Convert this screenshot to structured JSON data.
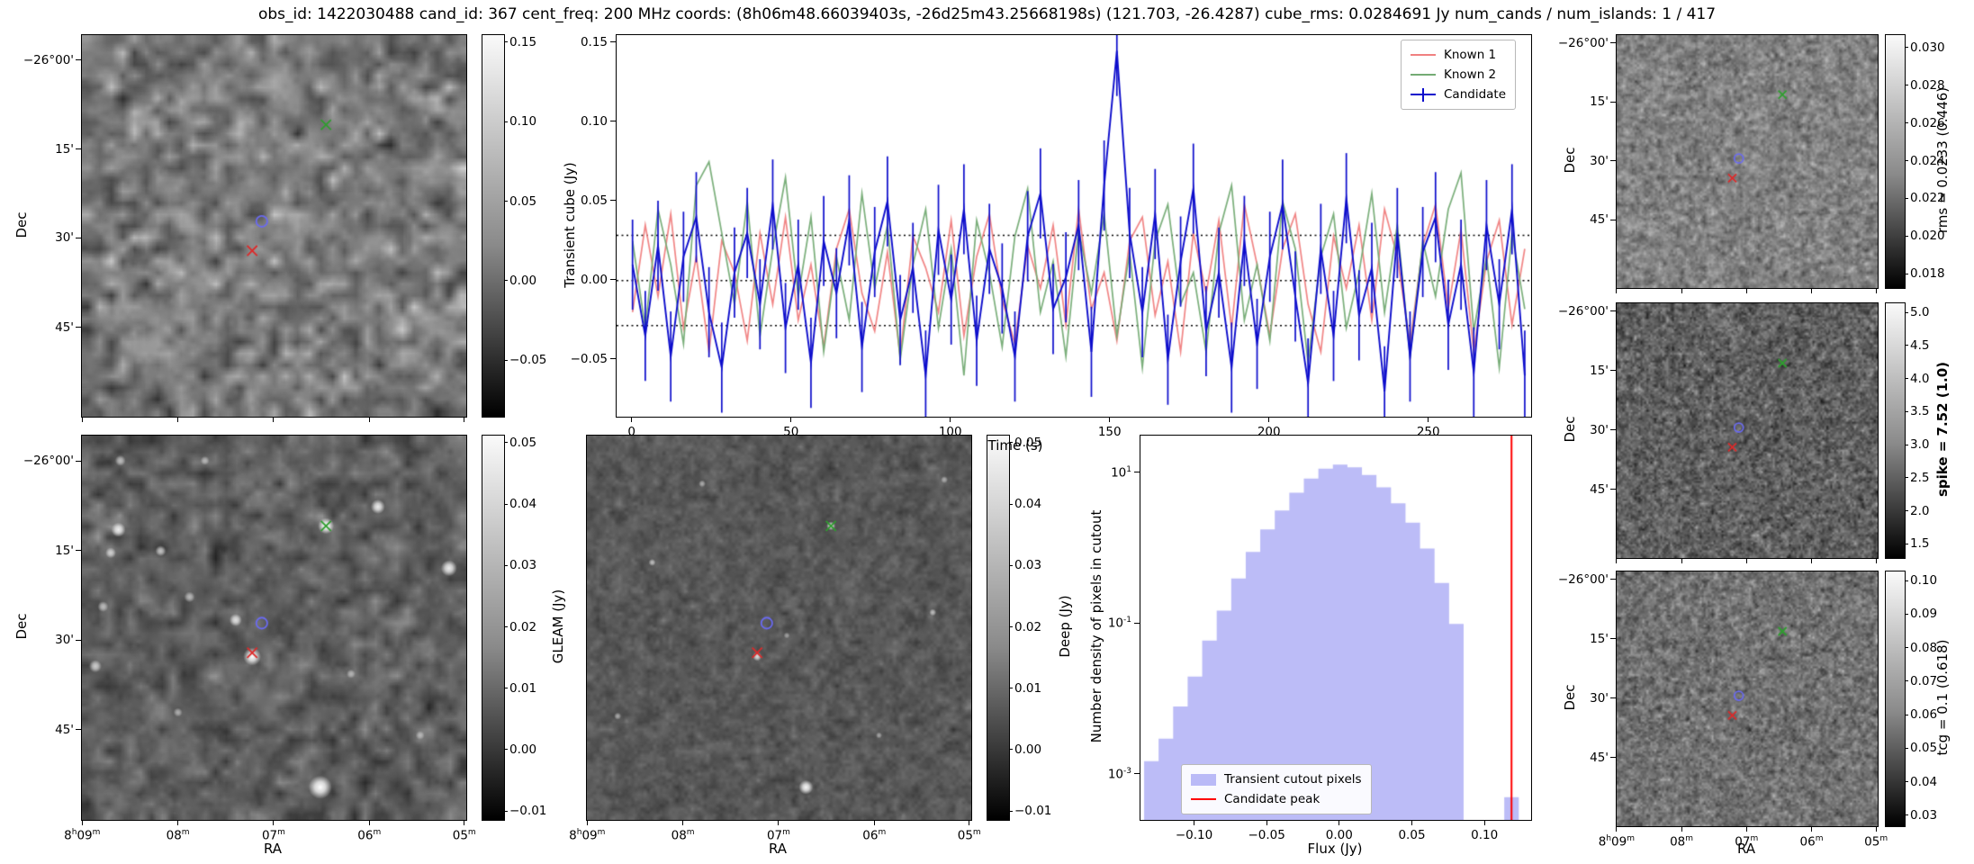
{
  "title": "obs_id: 1422030488 cand_id: 367 cent_freq: 200 MHz coords: (8h06m48.66039403s, -26d25m43.25668198s) (121.703, -26.4287) cube_rms: 0.0284691 Jy num_cands / num_islands: 1 / 417",
  "axis_labels": {
    "dec": "Dec",
    "ra": "RA",
    "time": "Time (s)",
    "transient_cube": "Transient cube (Jy)",
    "gleam": "GLEAM (Jy)",
    "deep": "Deep (Jy)",
    "flux": "Flux (Jy)",
    "hist_y": "Number density of pixels in cutout"
  },
  "dec_ticks": [
    "−26°00'",
    "15'",
    "30'",
    "45'"
  ],
  "ra_ticks": [
    "8h09m",
    "08m",
    "07m",
    "06m",
    "05m"
  ],
  "colorbars": {
    "transient": {
      "vmin": -0.085,
      "vmax": 0.155,
      "ticks": [
        0.15,
        0.1,
        0.05,
        0.0,
        -0.05
      ],
      "labels": [
        "0.15",
        "0.10",
        "0.05",
        "0.00",
        "−0.05"
      ]
    },
    "gleam": {
      "vmin": -0.0113,
      "vmax": 0.0513,
      "ticks": [
        0.05,
        0.04,
        0.03,
        0.02,
        0.01,
        0.0,
        -0.01
      ],
      "labels": [
        "0.05",
        "0.04",
        "0.03",
        "0.02",
        "0.01",
        "0.00",
        "−0.01"
      ]
    },
    "deep": {
      "vmin": -0.0113,
      "vmax": 0.0513,
      "ticks": [
        0.05,
        0.04,
        0.03,
        0.02,
        0.01,
        0.0,
        -0.01
      ],
      "labels": [
        "0.05",
        "0.04",
        "0.03",
        "0.02",
        "0.01",
        "0.00",
        "−0.01"
      ]
    },
    "rms": {
      "vmin": 0.0173,
      "vmax": 0.0307,
      "ticks": [
        0.03,
        0.028,
        0.026,
        0.024,
        0.022,
        0.02,
        0.018
      ],
      "labels": [
        "0.030",
        "0.028",
        "0.026",
        "0.024",
        "0.022",
        "0.020",
        "0.018"
      ],
      "label": "rms = 0.0233 (0.446)"
    },
    "spike": {
      "vmin": 1.3,
      "vmax": 5.15,
      "ticks": [
        5.0,
        4.5,
        4.0,
        3.5,
        3.0,
        2.5,
        2.0,
        1.5
      ],
      "labels": [
        "5.0",
        "4.5",
        "4.0",
        "3.5",
        "3.0",
        "2.5",
        "2.0",
        "1.5"
      ],
      "label": "spike = 7.52 (1.0)"
    },
    "tcg": {
      "vmin": 0.027,
      "vmax": 0.103,
      "ticks": [
        0.1,
        0.09,
        0.08,
        0.07,
        0.06,
        0.05,
        0.04,
        0.03
      ],
      "labels": [
        "0.10",
        "0.09",
        "0.08",
        "0.07",
        "0.06",
        "0.05",
        "0.04",
        "0.03"
      ],
      "label": "tcg = 0.1 (0.618)"
    }
  },
  "markers": [
    {
      "name": "known-1-position",
      "shape": "x",
      "color": "#dd2a2a",
      "fx": 0.443,
      "fy": 0.565
    },
    {
      "name": "known-2-position",
      "shape": "x",
      "color": "#2f9e2f",
      "fx": 0.635,
      "fy": 0.235
    },
    {
      "name": "candidate-position",
      "shape": "circle",
      "color": "#6a6af0",
      "fx": 0.468,
      "fy": 0.488
    }
  ],
  "chart_data": [
    {
      "type": "line",
      "name": "transient-lightcurve",
      "xlabel": "Time (s)",
      "ylabel": "Transient cube (Jy)",
      "xlim": [
        -5,
        282
      ],
      "ylim": [
        -0.086,
        0.155
      ],
      "x_ticks": [
        0,
        50,
        100,
        150,
        200,
        250
      ],
      "y_ticks": [
        0.15,
        0.1,
        0.05,
        0.0,
        -0.05
      ],
      "y_tick_labels": [
        "0.15",
        "0.10",
        "0.05",
        "0.00",
        "−0.05"
      ],
      "hlines": [
        0.0284691,
        0.0,
        -0.0284691
      ],
      "hline_style": "dotted",
      "legend_position": "upper right",
      "x_start": 0,
      "x_step": 4,
      "series": [
        {
          "name": "Known 1",
          "color": "#f08080",
          "values": [
            -0.02,
            0.035,
            -0.01,
            0.042,
            -0.03,
            0.015,
            -0.045,
            0.025,
            0.005,
            -0.038,
            0.03,
            -0.015,
            0.04,
            -0.025,
            0.01,
            -0.042,
            0.02,
            0.045,
            -0.008,
            -0.032,
            0.018,
            -0.048,
            0.028,
            0.008,
            -0.02,
            0.038,
            -0.035,
            0.015,
            0.042,
            -0.012,
            -0.04,
            0.022,
            -0.005,
            0.035,
            -0.028,
            0.045,
            -0.018,
            0.005,
            -0.038,
            0.025,
            0.04,
            -0.022,
            0.012,
            -0.045,
            0.03,
            -0.008,
            0.038,
            -0.03,
            0.048,
            0.01,
            -0.035,
            0.02,
            0.042,
            -0.015,
            -0.045,
            0.028,
            -0.005,
            0.035,
            -0.025,
            0.045,
            0.015,
            -0.04,
            0.022,
            0.048,
            -0.018,
            0.032,
            -0.045,
            0.012,
            0.038,
            -0.028,
            0.02
          ]
        },
        {
          "name": "Known 2",
          "color": "#74ab74",
          "values": [
            0.025,
            -0.03,
            0.045,
            0.01,
            -0.04,
            0.06,
            0.075,
            0.03,
            -0.015,
            0.05,
            -0.035,
            0.02,
            0.065,
            -0.01,
            0.04,
            -0.045,
            0.015,
            -0.025,
            0.055,
            -0.005,
            0.035,
            -0.05,
            0.01,
            0.045,
            -0.03,
            0.02,
            -0.06,
            0.038,
            0.005,
            -0.042,
            0.028,
            0.058,
            -0.02,
            0.012,
            -0.048,
            0.032,
            -0.008,
            0.042,
            -0.035,
            0.018,
            -0.055,
            0.025,
            0.048,
            -0.015,
            0.005,
            -0.045,
            0.03,
            0.06,
            -0.025,
            0.01,
            -0.038,
            0.05,
            0.02,
            -0.052,
            0.015,
            0.042,
            -0.03,
            0.005,
            0.055,
            -0.02,
            0.035,
            -0.048,
            0.025,
            -0.01,
            0.045,
            0.068,
            -0.032,
            0.015,
            -0.055,
            0.03,
            -0.018
          ]
        },
        {
          "name": "Candidate",
          "color": "#0d0dcc",
          "yerr": 0.0284691,
          "values": [
            0.01,
            -0.035,
            0.022,
            -0.048,
            0.015,
            0.04,
            -0.02,
            -0.055,
            0.005,
            0.03,
            -0.015,
            0.048,
            -0.03,
            0.01,
            -0.052,
            0.025,
            -0.008,
            0.038,
            -0.042,
            0.018,
            0.05,
            -0.025,
            0.008,
            -0.06,
            0.032,
            -0.012,
            0.045,
            -0.038,
            0.02,
            -0.005,
            -0.048,
            0.028,
            0.055,
            -0.018,
            0.002,
            0.035,
            -0.045,
            0.06,
            0.145,
            0.03,
            -0.02,
            0.042,
            -0.05,
            0.012,
            0.058,
            -0.032,
            0.005,
            -0.055,
            0.025,
            -0.04,
            0.015,
            0.048,
            -0.01,
            -0.065,
            0.02,
            -0.035,
            0.052,
            -0.022,
            0.008,
            -0.07,
            0.03,
            -0.048,
            0.018,
            0.04,
            -0.028,
            0.01,
            -0.058,
            0.035,
            -0.015,
            0.045,
            -0.06
          ]
        }
      ]
    },
    {
      "type": "bar",
      "name": "flux-histogram",
      "xlabel": "Flux (Jy)",
      "ylabel": "Number density of pixels in cutout",
      "yscale": "log",
      "xlim": [
        -0.1375,
        0.1315
      ],
      "ylim": [
        0.00025,
        31.6
      ],
      "x_ticks": [
        -0.1,
        -0.05,
        0.0,
        0.05,
        0.1
      ],
      "x_tick_labels": [
        "−0.10",
        "−0.05",
        "0.00",
        "0.05",
        "0.10"
      ],
      "y_tick_exponents": [
        1,
        -1,
        -3
      ],
      "bin_width": 0.01,
      "bin_left": [
        -0.135,
        -0.125,
        -0.115,
        -0.105,
        -0.095,
        -0.085,
        -0.075,
        -0.065,
        -0.055,
        -0.045,
        -0.035,
        -0.025,
        -0.015,
        -0.005,
        0.005,
        0.015,
        0.025,
        0.035,
        0.045,
        0.055,
        0.065,
        0.075
      ],
      "density": [
        0.0015,
        0.003,
        0.008,
        0.02,
        0.06,
        0.15,
        0.4,
        0.9,
        1.8,
        3.2,
        5.5,
        8.5,
        11.5,
        13,
        12,
        9.5,
        6.5,
        4,
        2.2,
        1.0,
        0.35,
        0.1
      ],
      "outlier_bin": {
        "left": 0.113,
        "width": 0.01,
        "density": 0.0005
      },
      "candidate_peak": 0.118,
      "fill_color": "#8f8ff2",
      "line_color": "#ff0000",
      "legend": [
        "Transient cutout pixels",
        "Candidate peak"
      ],
      "legend_position": "lower left"
    },
    {
      "type": "heatmap",
      "name": "transient-cutout",
      "colorbar": "transient",
      "unit": "Jy"
    },
    {
      "type": "heatmap",
      "name": "gleam-cutout",
      "colorbar": "gleam",
      "unit": "Jy",
      "sources": [
        [
          0.635,
          0.235,
          9,
          1.0
        ],
        [
          0.443,
          0.575,
          10,
          1.0
        ],
        [
          0.095,
          0.245,
          8,
          0.9
        ],
        [
          0.075,
          0.305,
          6,
          0.7
        ],
        [
          0.28,
          0.42,
          6,
          0.6
        ],
        [
          0.4,
          0.48,
          7,
          0.8
        ],
        [
          0.77,
          0.185,
          8,
          0.9
        ],
        [
          0.955,
          0.345,
          9,
          0.9
        ],
        [
          0.62,
          0.915,
          13,
          1.0
        ],
        [
          0.035,
          0.6,
          7,
          0.7
        ],
        [
          0.25,
          0.72,
          5,
          0.5
        ],
        [
          0.88,
          0.78,
          5,
          0.5
        ],
        [
          0.7,
          0.62,
          5,
          0.5
        ],
        [
          0.1,
          0.065,
          6,
          0.6
        ],
        [
          0.32,
          0.065,
          5,
          0.5
        ],
        [
          0.055,
          0.445,
          6,
          0.6
        ],
        [
          0.205,
          0.3,
          6,
          0.7
        ]
      ]
    },
    {
      "type": "heatmap",
      "name": "deep-cutout",
      "colorbar": "deep",
      "unit": "Jy",
      "sources": [
        [
          0.635,
          0.235,
          5,
          0.9
        ],
        [
          0.443,
          0.575,
          5,
          0.8
        ],
        [
          0.17,
          0.33,
          4,
          0.6
        ],
        [
          0.9,
          0.46,
          4,
          0.6
        ],
        [
          0.57,
          0.915,
          8,
          0.95
        ],
        [
          0.08,
          0.73,
          4,
          0.5
        ],
        [
          0.3,
          0.125,
          4,
          0.5
        ],
        [
          0.93,
          0.115,
          4,
          0.5
        ],
        [
          0.76,
          0.78,
          3.5,
          0.45
        ],
        [
          0.52,
          0.52,
          3.5,
          0.4
        ]
      ]
    },
    {
      "type": "heatmap",
      "name": "rms-cutout",
      "colorbar": "rms",
      "stat": "rms = 0.0233 (0.446)"
    },
    {
      "type": "heatmap",
      "name": "spike-cutout",
      "colorbar": "spike",
      "stat": "spike = 7.52 (1.0)"
    },
    {
      "type": "heatmap",
      "name": "tcg-cutout",
      "colorbar": "tcg",
      "stat": "tcg = 0.1 (0.618)"
    }
  ]
}
